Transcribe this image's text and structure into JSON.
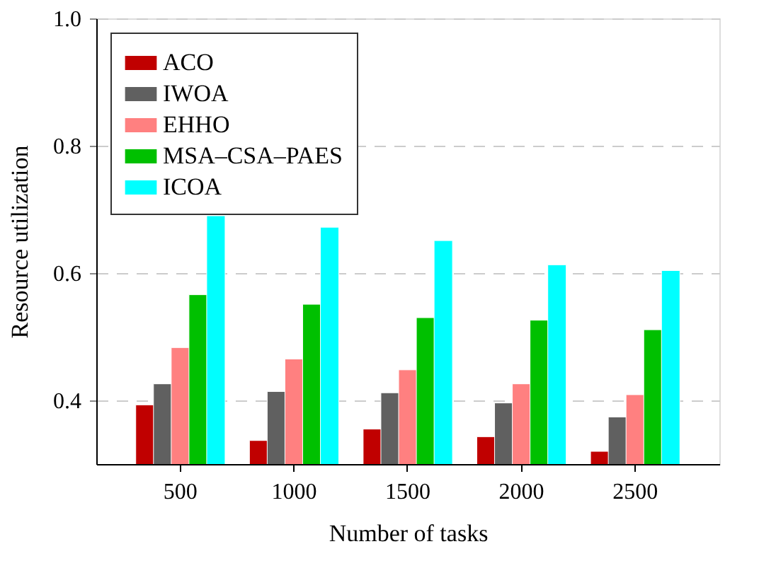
{
  "chart_data": {
    "type": "bar",
    "xlabel": "Number of tasks",
    "ylabel": "Resource utilization",
    "categories": [
      "500",
      "1000",
      "1500",
      "2000",
      "2500"
    ],
    "series": [
      {
        "name": "ACO",
        "color": "#c00000",
        "values": [
          0.393,
          0.337,
          0.355,
          0.343,
          0.32
        ]
      },
      {
        "name": "IWOA",
        "color": "#606060",
        "values": [
          0.426,
          0.414,
          0.412,
          0.396,
          0.374
        ]
      },
      {
        "name": "EHHO",
        "color": "#ff8080",
        "values": [
          0.483,
          0.465,
          0.448,
          0.426,
          0.409
        ]
      },
      {
        "name": "MSA–CSA–PAES",
        "color": "#00c000",
        "values": [
          0.566,
          0.551,
          0.53,
          0.526,
          0.511
        ]
      },
      {
        "name": "ICOA",
        "color": "#00ffff",
        "values": [
          0.69,
          0.672,
          0.651,
          0.613,
          0.604
        ]
      }
    ],
    "ylim": [
      0.3,
      1.0
    ],
    "yticks": [
      0.4,
      0.6,
      0.8,
      {
        "value": 1.0,
        "label": "1.0"
      }
    ],
    "grid": "y",
    "legend": "top left"
  }
}
